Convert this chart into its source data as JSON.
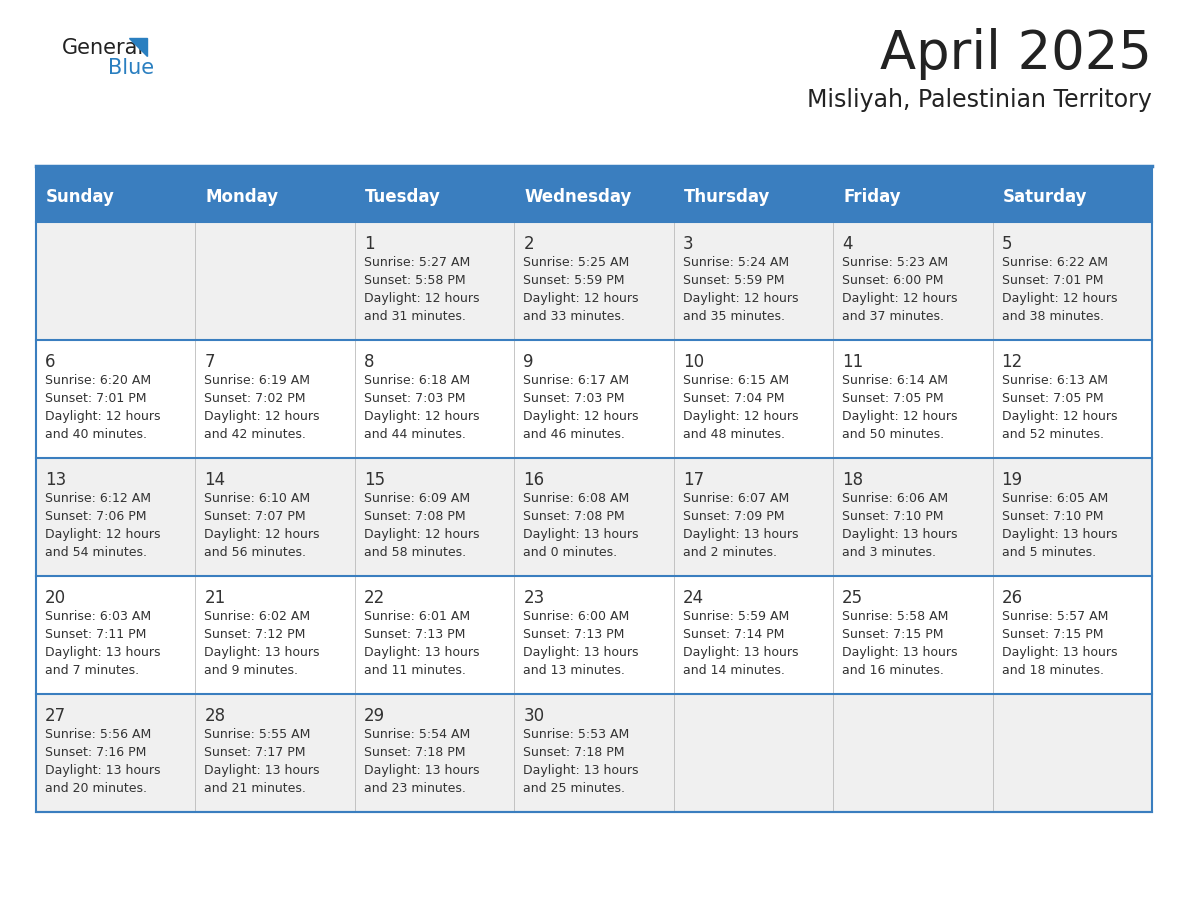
{
  "title": "April 2025",
  "subtitle": "Misliyah, Palestinian Territory",
  "days_of_week": [
    "Sunday",
    "Monday",
    "Tuesday",
    "Wednesday",
    "Thursday",
    "Friday",
    "Saturday"
  ],
  "header_bg": "#3a7ebf",
  "header_text": "#ffffff",
  "row_bg_odd": "#f0f0f0",
  "row_bg_even": "#ffffff",
  "border_color": "#3a7ebf",
  "text_color": "#333333",
  "title_color": "#222222",
  "logo_text_color": "#222222",
  "logo_blue_color": "#2a7fc0",
  "weeks": [
    [
      {
        "day": "",
        "sunrise": "",
        "sunset": "",
        "daylight_line1": "",
        "daylight_line2": ""
      },
      {
        "day": "",
        "sunrise": "",
        "sunset": "",
        "daylight_line1": "",
        "daylight_line2": ""
      },
      {
        "day": "1",
        "sunrise": "Sunrise: 5:27 AM",
        "sunset": "Sunset: 5:58 PM",
        "daylight_line1": "Daylight: 12 hours",
        "daylight_line2": "and 31 minutes."
      },
      {
        "day": "2",
        "sunrise": "Sunrise: 5:25 AM",
        "sunset": "Sunset: 5:59 PM",
        "daylight_line1": "Daylight: 12 hours",
        "daylight_line2": "and 33 minutes."
      },
      {
        "day": "3",
        "sunrise": "Sunrise: 5:24 AM",
        "sunset": "Sunset: 5:59 PM",
        "daylight_line1": "Daylight: 12 hours",
        "daylight_line2": "and 35 minutes."
      },
      {
        "day": "4",
        "sunrise": "Sunrise: 5:23 AM",
        "sunset": "Sunset: 6:00 PM",
        "daylight_line1": "Daylight: 12 hours",
        "daylight_line2": "and 37 minutes."
      },
      {
        "day": "5",
        "sunrise": "Sunrise: 6:22 AM",
        "sunset": "Sunset: 7:01 PM",
        "daylight_line1": "Daylight: 12 hours",
        "daylight_line2": "and 38 minutes."
      }
    ],
    [
      {
        "day": "6",
        "sunrise": "Sunrise: 6:20 AM",
        "sunset": "Sunset: 7:01 PM",
        "daylight_line1": "Daylight: 12 hours",
        "daylight_line2": "and 40 minutes."
      },
      {
        "day": "7",
        "sunrise": "Sunrise: 6:19 AM",
        "sunset": "Sunset: 7:02 PM",
        "daylight_line1": "Daylight: 12 hours",
        "daylight_line2": "and 42 minutes."
      },
      {
        "day": "8",
        "sunrise": "Sunrise: 6:18 AM",
        "sunset": "Sunset: 7:03 PM",
        "daylight_line1": "Daylight: 12 hours",
        "daylight_line2": "and 44 minutes."
      },
      {
        "day": "9",
        "sunrise": "Sunrise: 6:17 AM",
        "sunset": "Sunset: 7:03 PM",
        "daylight_line1": "Daylight: 12 hours",
        "daylight_line2": "and 46 minutes."
      },
      {
        "day": "10",
        "sunrise": "Sunrise: 6:15 AM",
        "sunset": "Sunset: 7:04 PM",
        "daylight_line1": "Daylight: 12 hours",
        "daylight_line2": "and 48 minutes."
      },
      {
        "day": "11",
        "sunrise": "Sunrise: 6:14 AM",
        "sunset": "Sunset: 7:05 PM",
        "daylight_line1": "Daylight: 12 hours",
        "daylight_line2": "and 50 minutes."
      },
      {
        "day": "12",
        "sunrise": "Sunrise: 6:13 AM",
        "sunset": "Sunset: 7:05 PM",
        "daylight_line1": "Daylight: 12 hours",
        "daylight_line2": "and 52 minutes."
      }
    ],
    [
      {
        "day": "13",
        "sunrise": "Sunrise: 6:12 AM",
        "sunset": "Sunset: 7:06 PM",
        "daylight_line1": "Daylight: 12 hours",
        "daylight_line2": "and 54 minutes."
      },
      {
        "day": "14",
        "sunrise": "Sunrise: 6:10 AM",
        "sunset": "Sunset: 7:07 PM",
        "daylight_line1": "Daylight: 12 hours",
        "daylight_line2": "and 56 minutes."
      },
      {
        "day": "15",
        "sunrise": "Sunrise: 6:09 AM",
        "sunset": "Sunset: 7:08 PM",
        "daylight_line1": "Daylight: 12 hours",
        "daylight_line2": "and 58 minutes."
      },
      {
        "day": "16",
        "sunrise": "Sunrise: 6:08 AM",
        "sunset": "Sunset: 7:08 PM",
        "daylight_line1": "Daylight: 13 hours",
        "daylight_line2": "and 0 minutes."
      },
      {
        "day": "17",
        "sunrise": "Sunrise: 6:07 AM",
        "sunset": "Sunset: 7:09 PM",
        "daylight_line1": "Daylight: 13 hours",
        "daylight_line2": "and 2 minutes."
      },
      {
        "day": "18",
        "sunrise": "Sunrise: 6:06 AM",
        "sunset": "Sunset: 7:10 PM",
        "daylight_line1": "Daylight: 13 hours",
        "daylight_line2": "and 3 minutes."
      },
      {
        "day": "19",
        "sunrise": "Sunrise: 6:05 AM",
        "sunset": "Sunset: 7:10 PM",
        "daylight_line1": "Daylight: 13 hours",
        "daylight_line2": "and 5 minutes."
      }
    ],
    [
      {
        "day": "20",
        "sunrise": "Sunrise: 6:03 AM",
        "sunset": "Sunset: 7:11 PM",
        "daylight_line1": "Daylight: 13 hours",
        "daylight_line2": "and 7 minutes."
      },
      {
        "day": "21",
        "sunrise": "Sunrise: 6:02 AM",
        "sunset": "Sunset: 7:12 PM",
        "daylight_line1": "Daylight: 13 hours",
        "daylight_line2": "and 9 minutes."
      },
      {
        "day": "22",
        "sunrise": "Sunrise: 6:01 AM",
        "sunset": "Sunset: 7:13 PM",
        "daylight_line1": "Daylight: 13 hours",
        "daylight_line2": "and 11 minutes."
      },
      {
        "day": "23",
        "sunrise": "Sunrise: 6:00 AM",
        "sunset": "Sunset: 7:13 PM",
        "daylight_line1": "Daylight: 13 hours",
        "daylight_line2": "and 13 minutes."
      },
      {
        "day": "24",
        "sunrise": "Sunrise: 5:59 AM",
        "sunset": "Sunset: 7:14 PM",
        "daylight_line1": "Daylight: 13 hours",
        "daylight_line2": "and 14 minutes."
      },
      {
        "day": "25",
        "sunrise": "Sunrise: 5:58 AM",
        "sunset": "Sunset: 7:15 PM",
        "daylight_line1": "Daylight: 13 hours",
        "daylight_line2": "and 16 minutes."
      },
      {
        "day": "26",
        "sunrise": "Sunrise: 5:57 AM",
        "sunset": "Sunset: 7:15 PM",
        "daylight_line1": "Daylight: 13 hours",
        "daylight_line2": "and 18 minutes."
      }
    ],
    [
      {
        "day": "27",
        "sunrise": "Sunrise: 5:56 AM",
        "sunset": "Sunset: 7:16 PM",
        "daylight_line1": "Daylight: 13 hours",
        "daylight_line2": "and 20 minutes."
      },
      {
        "day": "28",
        "sunrise": "Sunrise: 5:55 AM",
        "sunset": "Sunset: 7:17 PM",
        "daylight_line1": "Daylight: 13 hours",
        "daylight_line2": "and 21 minutes."
      },
      {
        "day": "29",
        "sunrise": "Sunrise: 5:54 AM",
        "sunset": "Sunset: 7:18 PM",
        "daylight_line1": "Daylight: 13 hours",
        "daylight_line2": "and 23 minutes."
      },
      {
        "day": "30",
        "sunrise": "Sunrise: 5:53 AM",
        "sunset": "Sunset: 7:18 PM",
        "daylight_line1": "Daylight: 13 hours",
        "daylight_line2": "and 25 minutes."
      },
      {
        "day": "",
        "sunrise": "",
        "sunset": "",
        "daylight_line1": "",
        "daylight_line2": ""
      },
      {
        "day": "",
        "sunrise": "",
        "sunset": "",
        "daylight_line1": "",
        "daylight_line2": ""
      },
      {
        "day": "",
        "sunrise": "",
        "sunset": "",
        "daylight_line1": "",
        "daylight_line2": ""
      }
    ]
  ]
}
